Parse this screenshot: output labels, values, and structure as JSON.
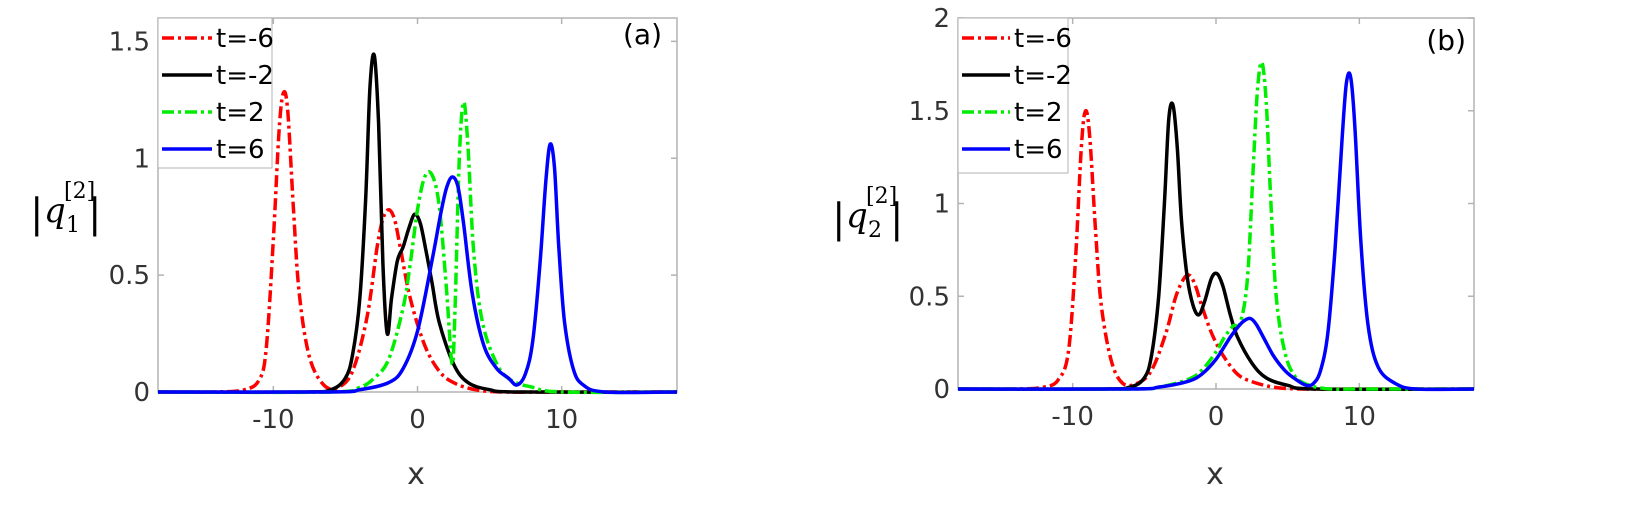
{
  "chart_data": [
    {
      "type": "line",
      "panel_label": "(a)",
      "xlabel": "x",
      "ylabel": {
        "symbol": "q",
        "sub": "1",
        "sup": "[2]"
      },
      "xlim": [
        -18,
        18
      ],
      "ylim": [
        0,
        1.6
      ],
      "xticks": [
        -10,
        0,
        10
      ],
      "xtick_labels": [
        "-10",
        "0",
        "10"
      ],
      "yticks": [
        0,
        0.5,
        1,
        1.5
      ],
      "ytick_labels": [
        "0",
        "0.5",
        "1",
        "1.5"
      ],
      "legend_position": "top-left",
      "series": [
        {
          "name": "t=-6",
          "color": "#ff0000",
          "dash": "dashdot",
          "x": [
            -18,
            -14,
            -12,
            -11,
            -10.5,
            -10,
            -9.6,
            -9.3,
            -9.0,
            -8.6,
            -8.2,
            -7.5,
            -6.5,
            -5.5,
            -4.5,
            -3.5,
            -2.8,
            -2.4,
            -2.0,
            -1.6,
            -1.2,
            -0.5,
            0.5,
            1.5,
            2.5,
            4,
            6,
            10,
            18
          ],
          "y": [
            0,
            0,
            0.01,
            0.05,
            0.18,
            0.65,
            1.12,
            1.28,
            1.2,
            0.78,
            0.42,
            0.15,
            0.03,
            0.02,
            0.09,
            0.32,
            0.62,
            0.74,
            0.78,
            0.74,
            0.62,
            0.4,
            0.2,
            0.09,
            0.04,
            0.01,
            0,
            0,
            0
          ]
        },
        {
          "name": "t=-2",
          "color": "#000000",
          "dash": "solid",
          "x": [
            -18,
            -8,
            -6,
            -5,
            -4.5,
            -4,
            -3.6,
            -3.3,
            -3.0,
            -2.7,
            -2.4,
            -2.1,
            -1.8,
            -1.4,
            -1.0,
            -0.6,
            -0.2,
            0.2,
            0.6,
            1.0,
            1.5,
            2.5,
            3.5,
            5,
            7,
            18
          ],
          "y": [
            0,
            0,
            0.01,
            0.06,
            0.16,
            0.4,
            0.82,
            1.3,
            1.44,
            1.15,
            0.55,
            0.25,
            0.4,
            0.56,
            0.62,
            0.7,
            0.76,
            0.72,
            0.6,
            0.47,
            0.3,
            0.12,
            0.04,
            0.01,
            0,
            0
          ]
        },
        {
          "name": "t=2",
          "color": "#00ee00",
          "dash": "dashdot",
          "x": [
            -18,
            -6,
            -4,
            -3,
            -2,
            -1,
            -0.5,
            0,
            0.5,
            1.0,
            1.5,
            2.0,
            2.4,
            2.6,
            2.9,
            3.2,
            3.5,
            3.9,
            4.5,
            5.5,
            6.5,
            8,
            10,
            18
          ],
          "y": [
            0,
            0,
            0.02,
            0.06,
            0.14,
            0.36,
            0.55,
            0.78,
            0.92,
            0.93,
            0.8,
            0.45,
            0.12,
            0.35,
            1.0,
            1.24,
            1.05,
            0.6,
            0.3,
            0.12,
            0.05,
            0.02,
            0,
            0
          ]
        },
        {
          "name": "t=6",
          "color": "#0000ff",
          "dash": "solid",
          "x": [
            -18,
            -6,
            -4,
            -2,
            -1,
            0,
            1,
            1.6,
            2.0,
            2.4,
            2.8,
            3.2,
            3.8,
            4.6,
            5.5,
            6.3,
            6.9,
            7.5,
            8.0,
            8.5,
            8.9,
            9.2,
            9.5,
            9.8,
            10.2,
            10.8,
            11.5,
            13,
            18
          ],
          "y": [
            0,
            0,
            0.01,
            0.04,
            0.1,
            0.26,
            0.56,
            0.76,
            0.87,
            0.92,
            0.88,
            0.72,
            0.42,
            0.2,
            0.1,
            0.06,
            0.03,
            0.08,
            0.22,
            0.55,
            0.9,
            1.06,
            0.96,
            0.62,
            0.3,
            0.1,
            0.03,
            0,
            0
          ]
        }
      ]
    },
    {
      "type": "line",
      "panel_label": "(b)",
      "xlabel": "x",
      "ylabel": {
        "symbol": "q",
        "sub": "2",
        "sup": "[2]"
      },
      "xlim": [
        -18,
        18
      ],
      "ylim": [
        0,
        2
      ],
      "xticks": [
        -10,
        0,
        10
      ],
      "xtick_labels": [
        "-10",
        "0",
        "10"
      ],
      "yticks": [
        0,
        0.5,
        1,
        1.5,
        2
      ],
      "ytick_labels": [
        "0",
        "0.5",
        "1",
        "1.5",
        "2"
      ],
      "legend_position": "top-left",
      "series": [
        {
          "name": "t=-6",
          "color": "#ff0000",
          "dash": "dashdot",
          "x": [
            -18,
            -14,
            -12,
            -11,
            -10.3,
            -9.8,
            -9.4,
            -9.1,
            -8.8,
            -8.4,
            -8.0,
            -7.3,
            -6.5,
            -5.5,
            -4.5,
            -3.5,
            -2.8,
            -2.2,
            -1.8,
            -1.4,
            -1.0,
            -0.3,
            0.5,
            1.5,
            2.5,
            4,
            6,
            10,
            18
          ],
          "y": [
            0,
            0,
            0.01,
            0.05,
            0.2,
            0.7,
            1.3,
            1.5,
            1.35,
            0.85,
            0.45,
            0.15,
            0.03,
            0.03,
            0.1,
            0.3,
            0.5,
            0.6,
            0.61,
            0.55,
            0.45,
            0.3,
            0.18,
            0.08,
            0.04,
            0.01,
            0,
            0,
            0
          ]
        },
        {
          "name": "t=-2",
          "color": "#000000",
          "dash": "solid",
          "x": [
            -18,
            -8,
            -6,
            -5,
            -4.5,
            -4,
            -3.6,
            -3.3,
            -3.0,
            -2.7,
            -2.4,
            -2.0,
            -1.6,
            -1.2,
            -0.8,
            -0.3,
            0.1,
            0.5,
            1.0,
            1.5,
            2.5,
            3.5,
            5,
            7,
            18
          ],
          "y": [
            0,
            0,
            0.01,
            0.06,
            0.18,
            0.5,
            1.0,
            1.45,
            1.53,
            1.3,
            0.9,
            0.6,
            0.45,
            0.4,
            0.47,
            0.6,
            0.62,
            0.55,
            0.4,
            0.28,
            0.14,
            0.06,
            0.02,
            0,
            0
          ]
        },
        {
          "name": "t=2",
          "color": "#00ee00",
          "dash": "dashdot",
          "x": [
            -18,
            -6,
            -4,
            -2,
            -1,
            0,
            0.6,
            1.2,
            1.7,
            2.2,
            2.6,
            2.9,
            3.2,
            3.5,
            3.8,
            4.2,
            4.8,
            5.5,
            6.5,
            8,
            10,
            18
          ],
          "y": [
            0,
            0,
            0.01,
            0.05,
            0.1,
            0.2,
            0.28,
            0.34,
            0.36,
            0.6,
            1.2,
            1.62,
            1.76,
            1.55,
            1.05,
            0.5,
            0.2,
            0.07,
            0.02,
            0,
            0,
            0
          ]
        },
        {
          "name": "t=6",
          "color": "#0000ff",
          "dash": "solid",
          "x": [
            -18,
            -6,
            -4,
            -2,
            -1,
            0,
            1,
            1.6,
            2.0,
            2.4,
            2.8,
            3.3,
            4.0,
            4.8,
            5.6,
            6.3,
            6.8,
            7.3,
            7.8,
            8.3,
            8.8,
            9.1,
            9.4,
            9.7,
            10.1,
            10.6,
            11.3,
            12.5,
            14,
            18
          ],
          "y": [
            0,
            0,
            0.01,
            0.04,
            0.08,
            0.16,
            0.28,
            0.34,
            0.37,
            0.38,
            0.35,
            0.28,
            0.18,
            0.1,
            0.05,
            0.02,
            0.03,
            0.1,
            0.3,
            0.75,
            1.35,
            1.65,
            1.68,
            1.4,
            0.8,
            0.35,
            0.12,
            0.03,
            0,
            0
          ]
        }
      ]
    }
  ]
}
